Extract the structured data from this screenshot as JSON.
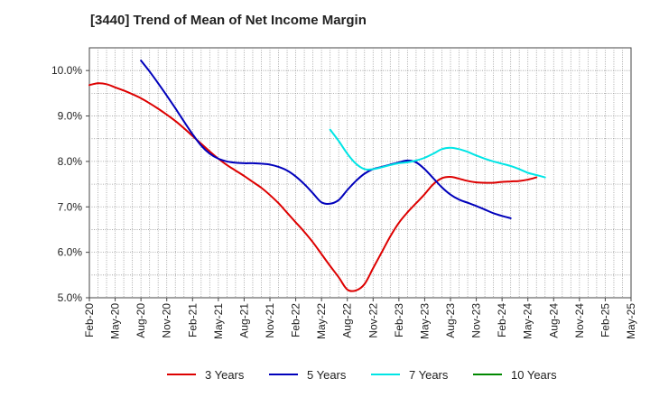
{
  "chart_data": {
    "type": "line",
    "title": "[3440]  Trend of Mean of Net Income Margin",
    "xlabel": "",
    "ylabel": "",
    "ylim": [
      5.0,
      10.5
    ],
    "y_ticks": [
      5.0,
      6.0,
      7.0,
      8.0,
      9.0,
      10.0
    ],
    "y_tick_labels": [
      "5.0%",
      "6.0%",
      "7.0%",
      "8.0%",
      "9.0%",
      "10.0%"
    ],
    "x_tick_labels": [
      "Feb-20",
      "May-20",
      "Aug-20",
      "Nov-20",
      "Feb-21",
      "May-21",
      "Aug-21",
      "Nov-21",
      "Feb-22",
      "May-22",
      "Aug-22",
      "Nov-22",
      "Feb-23",
      "May-23",
      "Aug-23",
      "Nov-23",
      "Feb-24",
      "May-24",
      "Aug-24",
      "Nov-24",
      "Feb-25",
      "May-25"
    ],
    "grid": true,
    "legend_position": "bottom",
    "series": [
      {
        "name": "3 Years",
        "color": "#dd0000",
        "points": [
          [
            0,
            9.68
          ],
          [
            1,
            9.72
          ],
          [
            2,
            9.7
          ],
          [
            3,
            9.63
          ],
          [
            4,
            9.56
          ],
          [
            5,
            9.48
          ],
          [
            6,
            9.39
          ],
          [
            7,
            9.28
          ],
          [
            8,
            9.16
          ],
          [
            9,
            9.03
          ],
          [
            10,
            8.89
          ],
          [
            11,
            8.73
          ],
          [
            12,
            8.56
          ],
          [
            13,
            8.39
          ],
          [
            14,
            8.22
          ],
          [
            15,
            8.06
          ],
          [
            16,
            7.92
          ],
          [
            17,
            7.8
          ],
          [
            18,
            7.68
          ],
          [
            19,
            7.55
          ],
          [
            20,
            7.42
          ],
          [
            21,
            7.26
          ],
          [
            22,
            7.08
          ],
          [
            23,
            6.87
          ],
          [
            24,
            6.66
          ],
          [
            25,
            6.45
          ],
          [
            26,
            6.22
          ],
          [
            27,
            5.96
          ],
          [
            28,
            5.7
          ],
          [
            29,
            5.45
          ],
          [
            30,
            5.18
          ],
          [
            31,
            5.16
          ],
          [
            32,
            5.3
          ],
          [
            33,
            5.65
          ],
          [
            34,
            6.0
          ],
          [
            35,
            6.35
          ],
          [
            36,
            6.65
          ],
          [
            37,
            6.88
          ],
          [
            38,
            7.08
          ],
          [
            39,
            7.28
          ],
          [
            40,
            7.5
          ],
          [
            41,
            7.63
          ],
          [
            42,
            7.66
          ],
          [
            43,
            7.62
          ],
          [
            44,
            7.57
          ],
          [
            45,
            7.54
          ],
          [
            46,
            7.53
          ],
          [
            47,
            7.53
          ],
          [
            48,
            7.55
          ],
          [
            49,
            7.56
          ],
          [
            50,
            7.57
          ],
          [
            51,
            7.6
          ],
          [
            52,
            7.65
          ]
        ]
      },
      {
        "name": "5 Years",
        "color": "#0000bb",
        "points": [
          [
            6,
            10.22
          ],
          [
            7,
            9.98
          ],
          [
            8,
            9.72
          ],
          [
            9,
            9.45
          ],
          [
            10,
            9.17
          ],
          [
            11,
            8.88
          ],
          [
            12,
            8.6
          ],
          [
            13,
            8.35
          ],
          [
            14,
            8.17
          ],
          [
            15,
            8.06
          ],
          [
            16,
            8.0
          ],
          [
            17,
            7.97
          ],
          [
            18,
            7.96
          ],
          [
            19,
            7.96
          ],
          [
            20,
            7.95
          ],
          [
            21,
            7.93
          ],
          [
            22,
            7.88
          ],
          [
            23,
            7.8
          ],
          [
            24,
            7.67
          ],
          [
            25,
            7.5
          ],
          [
            26,
            7.3
          ],
          [
            27,
            7.1
          ],
          [
            28,
            7.07
          ],
          [
            29,
            7.15
          ],
          [
            30,
            7.37
          ],
          [
            31,
            7.57
          ],
          [
            32,
            7.73
          ],
          [
            33,
            7.83
          ],
          [
            34,
            7.88
          ],
          [
            35,
            7.93
          ],
          [
            36,
            7.98
          ],
          [
            37,
            8.02
          ],
          [
            38,
            7.98
          ],
          [
            39,
            7.83
          ],
          [
            40,
            7.63
          ],
          [
            41,
            7.43
          ],
          [
            42,
            7.27
          ],
          [
            43,
            7.16
          ],
          [
            44,
            7.09
          ],
          [
            45,
            7.02
          ],
          [
            46,
            6.94
          ],
          [
            47,
            6.86
          ],
          [
            48,
            6.8
          ],
          [
            49,
            6.75
          ]
        ]
      },
      {
        "name": "7 Years",
        "color": "#00e5e5",
        "points": [
          [
            28,
            8.7
          ],
          [
            29,
            8.45
          ],
          [
            30,
            8.17
          ],
          [
            31,
            7.95
          ],
          [
            32,
            7.83
          ],
          [
            33,
            7.83
          ],
          [
            34,
            7.87
          ],
          [
            35,
            7.92
          ],
          [
            36,
            7.96
          ],
          [
            37,
            7.98
          ],
          [
            38,
            8.02
          ],
          [
            39,
            8.08
          ],
          [
            40,
            8.17
          ],
          [
            41,
            8.27
          ],
          [
            42,
            8.3
          ],
          [
            43,
            8.27
          ],
          [
            44,
            8.21
          ],
          [
            45,
            8.13
          ],
          [
            46,
            8.06
          ],
          [
            47,
            8.0
          ],
          [
            48,
            7.95
          ],
          [
            49,
            7.9
          ],
          [
            50,
            7.83
          ],
          [
            51,
            7.75
          ],
          [
            52,
            7.7
          ],
          [
            53,
            7.65
          ]
        ]
      },
      {
        "name": "10 Years",
        "color": "#008800",
        "points": []
      }
    ]
  }
}
